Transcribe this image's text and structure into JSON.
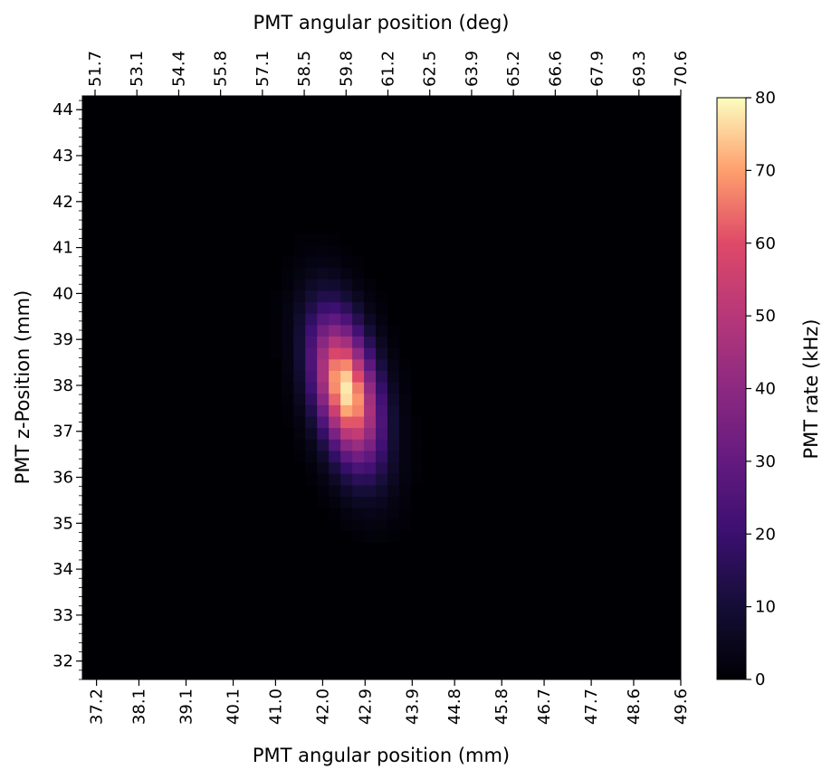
{
  "chart_data": {
    "type": "heatmap",
    "colormap": "magma",
    "xlabel": "PMT angular position (mm)",
    "xlabel_top": "PMT angular position (deg)",
    "ylabel": "PMT z-Position (mm)",
    "colorbar_label": "PMT rate (kHz)",
    "xlim_mm": [
      36.9,
      49.6
    ],
    "ylim_mm": [
      31.6,
      44.3
    ],
    "clim": [
      0,
      80
    ],
    "x_ticks_mm": [
      "37.2",
      "38.1",
      "39.1",
      "40.1",
      "41.0",
      "42.0",
      "42.9",
      "43.9",
      "44.8",
      "45.8",
      "46.7",
      "47.7",
      "48.6",
      "49.6"
    ],
    "x_ticks_deg": [
      "51.7",
      "53.1",
      "54.4",
      "55.8",
      "57.1",
      "58.5",
      "59.8",
      "61.2",
      "62.5",
      "63.9",
      "65.2",
      "66.6",
      "67.9",
      "69.3",
      "70.6"
    ],
    "y_ticks": [
      "32",
      "33",
      "34",
      "35",
      "36",
      "37",
      "38",
      "39",
      "40",
      "41",
      "42",
      "43",
      "44"
    ],
    "colorbar_ticks": [
      "0",
      "10",
      "20",
      "30",
      "40",
      "50",
      "60",
      "70",
      "80"
    ],
    "grid": false,
    "peak": {
      "x_mm": 42.5,
      "z_mm": 37.9,
      "rate_khz": 78
    },
    "spread_mm": {
      "sigma_x": 0.45,
      "sigma_z": 1.1,
      "tilt": -0.18
    },
    "background_rate_khz": 0
  }
}
